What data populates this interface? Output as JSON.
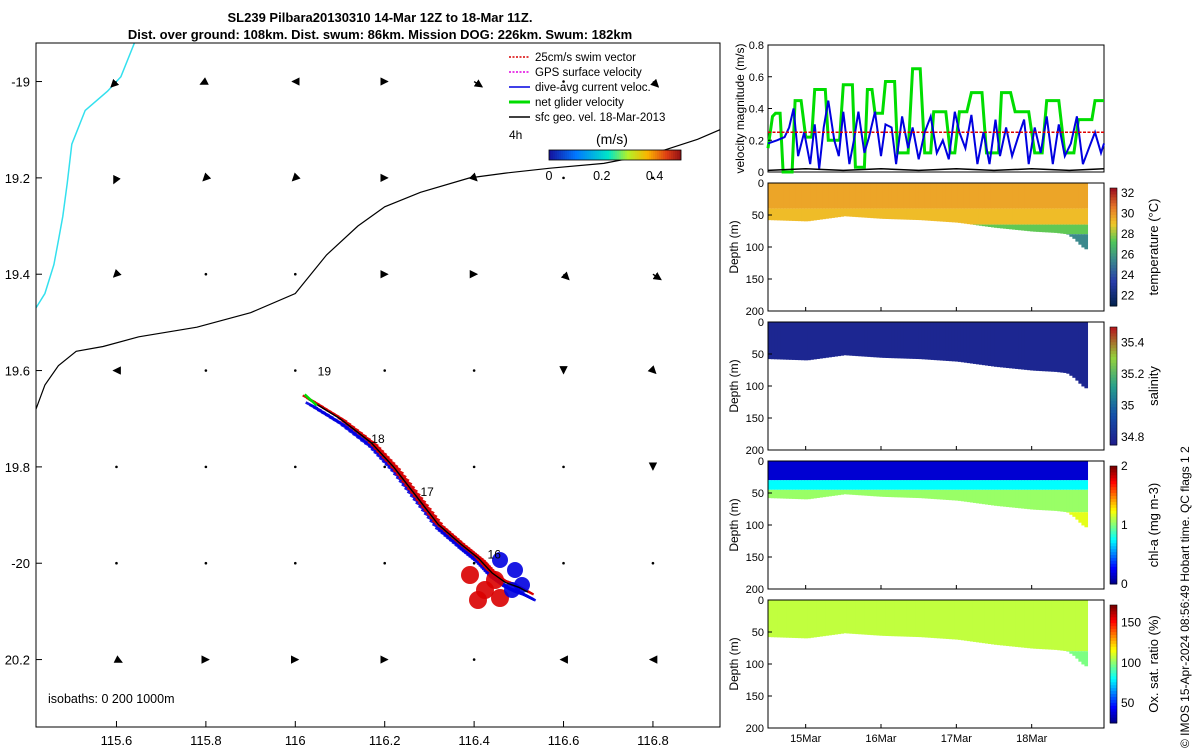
{
  "titles": {
    "line1": "SL239 Pilbara20130310 14-Mar 12Z to 18-Mar 11Z.",
    "line2": "Dist. over ground: 108km. Dist. swum: 86km. Mission DOG: 226km. Swum: 182km"
  },
  "credit": "© IMOS 15-Apr-2024 08:56:49 Hobart time. QC flags 1  2",
  "colors": {
    "swim_vector": "#d90000",
    "gps_velocity": "#e000e0",
    "current": "#0000e0",
    "net_velocity": "#00dd00",
    "geostrophic": "#000000",
    "coast": "#33e0ee"
  },
  "chart_data": [
    {
      "id": "map",
      "type": "scatter",
      "xlim": [
        115.42,
        116.95
      ],
      "ylim": [
        -20.34,
        -18.92
      ],
      "xticks": [
        115.6,
        115.8,
        116,
        116.2,
        116.4,
        116.6,
        116.8
      ],
      "xtick_labels": [
        "115.6",
        "115.8",
        "116",
        "116.2",
        "116.4",
        "116.6",
        "116.8"
      ],
      "yticks": [
        -19,
        -19.2,
        -19.4,
        -19.6,
        -19.8,
        -20,
        -20.2
      ],
      "ytick_labels": [
        "-19",
        "19.2",
        "19.4",
        "19.6",
        "19.8",
        "-20",
        "20.2"
      ],
      "legend": {
        "placement": "top-right",
        "items": [
          "25cm/s swim vector",
          "GPS surface velocity",
          "dive-avg current veloc.",
          "net glider velocity",
          "sfc geo. vel. 18-Mar-2013"
        ],
        "time_label": "4h"
      },
      "colorbar": {
        "label": "(m/s)",
        "ticks": [
          "0",
          "0.2",
          "0.4"
        ],
        "range": [
          0,
          0.5
        ]
      },
      "isobath_note": "isobaths: 0   200  1000m",
      "day_labels": [
        {
          "text": "19",
          "x": 116.05,
          "y": -19.61
        },
        {
          "text": "18",
          "x": 116.17,
          "y": -19.75
        },
        {
          "text": "17",
          "x": 116.28,
          "y": -19.86
        },
        {
          "text": "16",
          "x": 116.43,
          "y": -19.99
        }
      ],
      "coastline_0m": [
        [
          115.42,
          -19.47
        ],
        [
          115.44,
          -19.44
        ],
        [
          115.46,
          -19.38
        ],
        [
          115.47,
          -19.33
        ],
        [
          115.48,
          -19.28
        ],
        [
          115.49,
          -19.21
        ],
        [
          115.5,
          -19.13
        ],
        [
          115.53,
          -19.06
        ],
        [
          115.58,
          -19.02
        ],
        [
          115.61,
          -18.99
        ],
        [
          115.64,
          -18.92
        ]
      ],
      "isobath_200m": [
        [
          115.42,
          -19.68
        ],
        [
          115.44,
          -19.63
        ],
        [
          115.47,
          -19.59
        ],
        [
          115.51,
          -19.56
        ],
        [
          115.57,
          -19.55
        ],
        [
          115.65,
          -19.53
        ],
        [
          115.78,
          -19.51
        ],
        [
          115.9,
          -19.48
        ],
        [
          116,
          -19.44
        ],
        [
          116.07,
          -19.36
        ],
        [
          116.14,
          -19.3
        ],
        [
          116.2,
          -19.26
        ],
        [
          116.28,
          -19.23
        ],
        [
          116.39,
          -19.2
        ],
        [
          116.47,
          -19.19
        ],
        [
          116.57,
          -19.18
        ],
        [
          116.69,
          -19.17
        ],
        [
          116.8,
          -19.15
        ],
        [
          116.9,
          -19.12
        ],
        [
          116.95,
          -19.1
        ]
      ],
      "track": [
        [
          116.03,
          -19.66
        ],
        [
          116.1,
          -19.7
        ],
        [
          116.17,
          -19.75
        ],
        [
          116.22,
          -19.8
        ],
        [
          116.27,
          -19.86
        ],
        [
          116.32,
          -19.92
        ],
        [
          116.37,
          -19.96
        ],
        [
          116.41,
          -19.99
        ],
        [
          116.44,
          -20.02
        ],
        [
          116.47,
          -20.04
        ],
        [
          116.5,
          -20.05
        ],
        [
          116.52,
          -20.06
        ]
      ],
      "surface_geostrophic_u_v_mps": [
        [
          [
            -0.02,
            -0.02
          ],
          [
            -0.02,
            -0.01
          ],
          [
            -0.01,
            0
          ],
          [
            0.01,
            0
          ],
          [
            0.03,
            -0.02
          ],
          [
            0,
            0
          ],
          [
            0.02,
            -0.02
          ]
        ],
        [
          [
            -0.01,
            -0.02
          ],
          [
            -0.01,
            -0.01
          ],
          [
            -0.01,
            -0.01
          ],
          [
            0.01,
            0
          ],
          [
            0.01,
            -0.01
          ],
          [
            0,
            0
          ],
          [
            0,
            0
          ]
        ],
        [
          [
            -0.01,
            -0.01
          ],
          [
            0,
            0
          ],
          [
            0,
            0
          ],
          [
            0.01,
            0
          ],
          [
            0.01,
            0
          ],
          [
            0.02,
            -0.02
          ],
          [
            0.03,
            -0.02
          ]
        ],
        [
          [
            -0.01,
            0
          ],
          [
            0,
            0
          ],
          [
            0,
            0
          ],
          [
            0,
            0
          ],
          [
            0,
            0
          ],
          [
            0,
            -0.01
          ],
          [
            0.01,
            -0.01
          ]
        ],
        [
          [
            0,
            0
          ],
          [
            0,
            0
          ],
          [
            0,
            0
          ],
          [
            0,
            0
          ],
          [
            0,
            0
          ],
          [
            0,
            0
          ],
          [
            0,
            -0.01
          ]
        ],
        [
          [
            0,
            0
          ],
          [
            0,
            0
          ],
          [
            0,
            0
          ],
          [
            0,
            0
          ],
          [
            0,
            0
          ],
          [
            0,
            0
          ],
          [
            0,
            0
          ]
        ],
        [
          [
            0.02,
            -0.01
          ],
          [
            0.01,
            0
          ],
          [
            0.01,
            0
          ],
          [
            0.01,
            0
          ],
          [
            0,
            0
          ],
          [
            -0.01,
            0
          ],
          [
            -0.01,
            0
          ]
        ]
      ]
    },
    {
      "id": "velocity",
      "type": "line",
      "ylabel": "velocity magnitude (m/s)",
      "ylim": [
        0,
        0.8
      ],
      "yticks": [
        0,
        0.2,
        0.4,
        0.6,
        0.8
      ],
      "x_days": [
        14.5,
        15,
        16,
        17,
        18,
        18.96
      ],
      "series": [
        {
          "color": "#00dd00",
          "x": [
            14.5,
            14.56,
            14.6,
            14.66,
            14.7,
            14.82,
            14.86,
            14.94,
            15.0,
            15.08,
            15.12,
            15.26,
            15.3,
            15.45,
            15.5,
            15.62,
            15.66,
            15.78,
            15.82,
            15.88,
            15.92,
            16.02,
            16.06,
            16.18,
            16.22,
            16.36,
            16.42,
            16.52,
            16.58,
            16.66,
            16.7,
            16.86,
            16.92,
            16.98,
            17.04,
            17.14,
            17.2,
            17.34,
            17.4,
            17.56,
            17.6,
            17.72,
            17.78,
            17.96,
            18.04,
            18.14,
            18.2,
            18.36,
            18.44,
            18.56,
            18.62,
            18.8,
            18.84,
            18.96
          ],
          "values": [
            0.15,
            0.35,
            0.37,
            0.37,
            0.0,
            0.0,
            0.45,
            0.45,
            0.22,
            0.22,
            0.52,
            0.52,
            0.2,
            0.2,
            0.55,
            0.55,
            0.03,
            0.03,
            0.52,
            0.52,
            0.37,
            0.37,
            0.57,
            0.57,
            0.12,
            0.12,
            0.65,
            0.65,
            0.12,
            0.12,
            0.38,
            0.38,
            0.12,
            0.12,
            0.38,
            0.38,
            0.5,
            0.5,
            0.12,
            0.12,
            0.5,
            0.5,
            0.38,
            0.38,
            0.12,
            0.12,
            0.45,
            0.45,
            0.12,
            0.12,
            0.33,
            0.33,
            0.45,
            0.45
          ]
        },
        {
          "color": "#0000e0",
          "x": [
            14.5,
            14.62,
            14.72,
            14.78,
            14.84,
            14.9,
            14.98,
            15.06,
            15.12,
            15.18,
            15.24,
            15.3,
            15.38,
            15.44,
            15.5,
            15.58,
            15.64,
            15.7,
            15.78,
            15.84,
            15.92,
            16.0,
            16.06,
            16.14,
            16.2,
            16.28,
            16.36,
            16.42,
            16.5,
            16.58,
            16.66,
            16.74,
            16.82,
            16.9,
            16.98,
            17.04,
            17.12,
            17.2,
            17.28,
            17.36,
            17.44,
            17.52,
            17.58,
            17.66,
            17.74,
            17.82,
            17.9,
            17.96,
            18.04,
            18.12,
            18.2,
            18.28,
            18.36,
            18.44,
            18.52,
            18.6,
            18.68,
            18.76,
            18.84,
            18.92,
            18.96
          ],
          "values": [
            0.18,
            0.2,
            0.22,
            0.28,
            0.4,
            0.1,
            0.25,
            0.05,
            0.3,
            0.02,
            0.28,
            0.45,
            0.2,
            0.1,
            0.38,
            0.05,
            0.2,
            0.38,
            0.12,
            0.22,
            0.38,
            0.1,
            0.3,
            0.28,
            0.05,
            0.35,
            0.15,
            0.28,
            0.08,
            0.25,
            0.35,
            0.12,
            0.2,
            0.08,
            0.38,
            0.25,
            0.15,
            0.36,
            0.05,
            0.25,
            0.05,
            0.33,
            0.1,
            0.28,
            0.1,
            0.22,
            0.33,
            0.05,
            0.28,
            0.12,
            0.35,
            0.05,
            0.3,
            0.1,
            0.18,
            0.35,
            0.05,
            0.15,
            0.25,
            0.12,
            0.18
          ]
        },
        {
          "color": "#e00000",
          "x": [
            14.5,
            18.96
          ],
          "values": [
            0.25,
            0.25
          ]
        },
        {
          "color": "#000000",
          "x": [
            14.5,
            15.0,
            15.5,
            16.0,
            16.5,
            17.0,
            17.5,
            18.0,
            18.5,
            18.96
          ],
          "values": [
            0.01,
            0.02,
            0.01,
            0.02,
            0.01,
            0.02,
            0.01,
            0.02,
            0.01,
            0.02
          ]
        }
      ]
    },
    {
      "id": "temperature",
      "type": "heatmap",
      "ylabel": "Depth (m)",
      "ylim": [
        200,
        0
      ],
      "yticks": [
        0,
        50,
        100,
        150,
        200
      ],
      "colorbar": {
        "label": "temperature (°C)",
        "ticks": [
          22,
          24,
          26,
          28,
          30,
          32
        ],
        "range": [
          21,
          32.5
        ],
        "cmap": "thermal"
      },
      "profile_bottom_m": [
        [
          14.5,
          58
        ],
        [
          15.0,
          60
        ],
        [
          15.5,
          52
        ],
        [
          16.0,
          56
        ],
        [
          16.5,
          58
        ],
        [
          17.0,
          62
        ],
        [
          17.5,
          70
        ],
        [
          18.0,
          76
        ],
        [
          18.3,
          78
        ],
        [
          18.45,
          80
        ],
        [
          18.55,
          88
        ],
        [
          18.65,
          100
        ],
        [
          18.72,
          105
        ]
      ],
      "layers": [
        {
          "from": 0,
          "to": 40,
          "value": 29.8
        },
        {
          "from": 40,
          "to": 65,
          "value": 29.3
        },
        {
          "from": 65,
          "to": 80,
          "value": 27.5
        },
        {
          "from": 80,
          "to": 110,
          "value": 25.5
        }
      ]
    },
    {
      "id": "salinity",
      "type": "heatmap",
      "ylabel": "Depth (m)",
      "ylim": [
        200,
        0
      ],
      "yticks": [
        0,
        50,
        100,
        150,
        200
      ],
      "colorbar": {
        "label": "salinity",
        "ticks": [
          34.8,
          35,
          35.2,
          35.4
        ],
        "range": [
          34.75,
          35.5
        ],
        "cmap": "haline"
      },
      "profile_bottom_m": [
        [
          14.5,
          58
        ],
        [
          15.0,
          60
        ],
        [
          15.5,
          52
        ],
        [
          16.0,
          56
        ],
        [
          16.5,
          58
        ],
        [
          17.0,
          62
        ],
        [
          17.5,
          70
        ],
        [
          18.0,
          76
        ],
        [
          18.3,
          78
        ],
        [
          18.45,
          80
        ],
        [
          18.55,
          88
        ],
        [
          18.65,
          100
        ],
        [
          18.72,
          105
        ]
      ],
      "layers": [
        {
          "from": 0,
          "to": 110,
          "value": 34.78
        }
      ]
    },
    {
      "id": "chlorophyll",
      "type": "heatmap",
      "ylabel": "Depth (m)",
      "ylim": [
        200,
        0
      ],
      "yticks": [
        0,
        50,
        100,
        150,
        200
      ],
      "colorbar": {
        "label": "chl-a (mg m-3)",
        "ticks": [
          0,
          1,
          2
        ],
        "range": [
          0,
          2
        ],
        "cmap": "jet"
      },
      "profile_bottom_m": [
        [
          14.5,
          58
        ],
        [
          15.0,
          60
        ],
        [
          15.5,
          52
        ],
        [
          16.0,
          56
        ],
        [
          16.5,
          58
        ],
        [
          17.0,
          62
        ],
        [
          17.5,
          70
        ],
        [
          18.0,
          76
        ],
        [
          18.3,
          78
        ],
        [
          18.45,
          80
        ],
        [
          18.55,
          88
        ],
        [
          18.65,
          100
        ],
        [
          18.72,
          105
        ]
      ],
      "layers": [
        {
          "from": 0,
          "to": 30,
          "value": 0.15
        },
        {
          "from": 30,
          "to": 45,
          "value": 0.75
        },
        {
          "from": 45,
          "to": 80,
          "value": 1.05
        },
        {
          "from": 80,
          "to": 110,
          "value": 1.2
        }
      ]
    },
    {
      "id": "oxygen",
      "type": "heatmap",
      "ylabel": "Depth (m)",
      "ylim": [
        200,
        0
      ],
      "yticks": [
        0,
        50,
        100,
        150,
        200
      ],
      "colorbar": {
        "label": "Ox. sat. ratio (%)",
        "ticks": [
          50,
          100,
          150
        ],
        "range": [
          25,
          172
        ],
        "cmap": "jet"
      },
      "profile_bottom_m": [
        [
          14.5,
          58
        ],
        [
          15.0,
          60
        ],
        [
          15.5,
          52
        ],
        [
          16.0,
          56
        ],
        [
          16.5,
          58
        ],
        [
          17.0,
          62
        ],
        [
          17.5,
          70
        ],
        [
          18.0,
          76
        ],
        [
          18.3,
          78
        ],
        [
          18.45,
          80
        ],
        [
          18.55,
          88
        ],
        [
          18.65,
          100
        ],
        [
          18.72,
          105
        ]
      ],
      "layers": [
        {
          "from": 0,
          "to": 80,
          "value": 108
        },
        {
          "from": 80,
          "to": 110,
          "value": 98
        }
      ]
    }
  ],
  "time_axis": {
    "ticks": [
      15,
      16,
      17,
      18
    ],
    "labels": [
      "15Mar",
      "16Mar",
      "17Mar",
      "18Mar"
    ]
  }
}
